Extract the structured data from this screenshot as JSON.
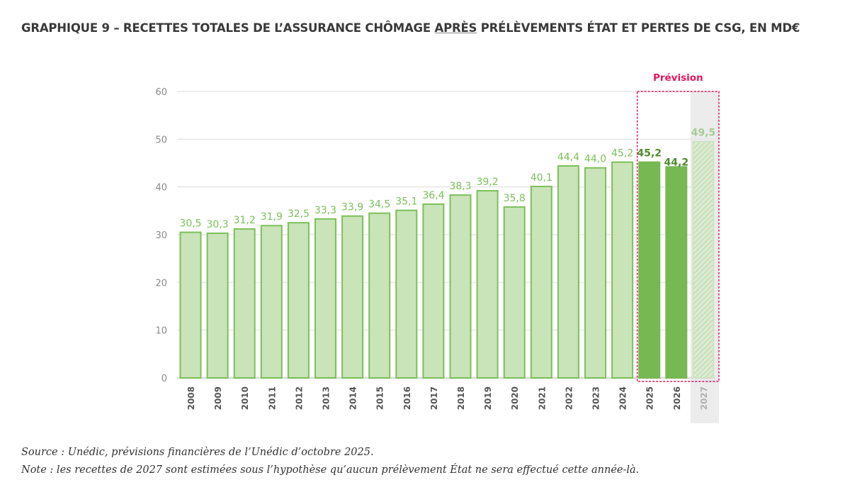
{
  "title": {
    "part1": "GRAPHIQUE 9 – RECETTES TOTALES DE L’ASSURANCE CHÔMAGE ",
    "underlined": "APRÈS",
    "part2": " PRÉLÈVEMENTS ÉTAT ET PERTES DE CSG, EN MD€"
  },
  "notes": {
    "source": "Source : Unédic, prévisions financières de l’Unédic d’octobre 2025.",
    "note": "Note : les recettes de 2027 sont estimées sous l’hypothèse qu’aucun prélèvement État ne sera effectué cette année-là."
  },
  "colors": {
    "bar_historic_fill": "#c9e4b8",
    "bar_historic_stroke": "#7cc05a",
    "bar_forecast_fill": "#76b852",
    "forecast_label": "#4f8a2f",
    "label_2027": "#a7cc93",
    "prevision_accent": "#e5175e",
    "gray_band": "#ececec",
    "gridline": "#e6e6e6"
  },
  "chart_data": {
    "type": "bar",
    "title": "GRAPHIQUE 9 – RECETTES TOTALES DE L’ASSURANCE CHÔMAGE APRÈS PRÉLÈVEMENTS ÉTAT ET PERTES DE CSG, EN MD€",
    "xlabel": "",
    "ylabel": "",
    "ylim": [
      0,
      60
    ],
    "yticks": [
      "0",
      "10",
      "20",
      "30",
      "40",
      "50",
      "60"
    ],
    "grid": true,
    "categories": [
      "2008",
      "2009",
      "2010",
      "2011",
      "2012",
      "2013",
      "2014",
      "2015",
      "2016",
      "2017",
      "2018",
      "2019",
      "2020",
      "2021",
      "2022",
      "2023",
      "2024",
      "2025",
      "2026",
      "2027"
    ],
    "values": [
      30.5,
      30.3,
      31.2,
      31.9,
      32.5,
      33.3,
      33.9,
      34.5,
      35.1,
      36.4,
      38.3,
      39.2,
      35.8,
      40.1,
      44.4,
      44.0,
      45.2,
      45.2,
      44.2,
      49.5
    ],
    "value_labels": [
      "30,5",
      "30,3",
      "31,2",
      "31,9",
      "32,5",
      "33,3",
      "33,9",
      "34,5",
      "35,1",
      "36,4",
      "38,3",
      "39,2",
      "35,8",
      "40,1",
      "44,4",
      "44,0",
      "45,2",
      "45,2",
      "44,2",
      "49,5"
    ],
    "bar_kind": [
      "historic",
      "historic",
      "historic",
      "historic",
      "historic",
      "historic",
      "historic",
      "historic",
      "historic",
      "historic",
      "historic",
      "historic",
      "historic",
      "historic",
      "historic",
      "historic",
      "historic",
      "forecast",
      "forecast",
      "hypothesis"
    ],
    "annotation": {
      "label": "Prévision",
      "covers": [
        "2025",
        "2026",
        "2027"
      ]
    },
    "shaded_category": "2027"
  }
}
